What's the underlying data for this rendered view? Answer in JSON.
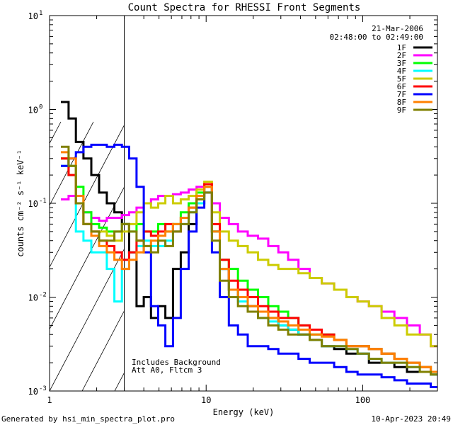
{
  "chart_data": {
    "type": "line",
    "title": "Count Spectra for RHESSI Front Segments",
    "xlabel": "Energy (keV)",
    "ylabel": "counts cm⁻² s⁻¹ keV⁻¹",
    "x_scale": "log",
    "y_scale": "log",
    "xlim": [
      1,
      300
    ],
    "ylim": [
      0.001,
      10
    ],
    "x_ticks": [
      {
        "value": 1,
        "label": "1"
      },
      {
        "value": 10,
        "label": "10"
      },
      {
        "value": 100,
        "label": "100"
      }
    ],
    "y_ticks": [
      {
        "value": 0.001,
        "base": "10",
        "exp": "-3"
      },
      {
        "value": 0.01,
        "base": "10",
        "exp": "-2"
      },
      {
        "value": 0.1,
        "base": "10",
        "exp": "-1"
      },
      {
        "value": 1,
        "base": "10",
        "exp": "0"
      },
      {
        "value": 10,
        "base": "10",
        "exp": "1"
      }
    ],
    "hatched_region_kev": [
      1,
      3
    ],
    "date_label": "21-Mar-2006",
    "time_label": "02:48:00 to 02:49:00",
    "annotations": [
      "Includes Background",
      "Att A0, Fltcm 3"
    ],
    "footer_left": "Generated by hsi_min_spectra_plot.pro",
    "footer_right": "10-Apr-2023 20:49",
    "series": [
      {
        "name": "1F",
        "color": "#000000",
        "x": [
          1.25,
          1.4,
          1.55,
          1.75,
          1.95,
          2.2,
          2.45,
          2.75,
          3.05,
          3.4,
          3.8,
          4.2,
          4.7,
          5.2,
          5.8,
          6.5,
          7.3,
          8.2,
          9.2,
          10.3,
          11.5,
          13,
          15,
          17,
          20,
          23,
          27,
          31,
          36,
          42,
          50,
          60,
          72,
          86,
          100,
          120,
          145,
          175,
          210,
          255,
          290
        ],
        "values": [
          1.2,
          0.8,
          0.45,
          0.3,
          0.2,
          0.13,
          0.1,
          0.08,
          0.06,
          0.03,
          0.008,
          0.01,
          0.006,
          0.008,
          0.006,
          0.02,
          0.03,
          0.06,
          0.1,
          0.16,
          0.05,
          0.02,
          0.012,
          0.01,
          0.008,
          0.007,
          0.006,
          0.005,
          0.0045,
          0.004,
          0.0035,
          0.003,
          0.0028,
          0.0025,
          0.0025,
          0.002,
          0.002,
          0.0018,
          0.0016,
          0.0016,
          0.0015
        ]
      },
      {
        "name": "2F",
        "color": "#ff00ff",
        "x": [
          1.25,
          1.4,
          1.55,
          1.75,
          1.95,
          2.2,
          2.45,
          2.75,
          3.05,
          3.4,
          3.8,
          4.2,
          4.7,
          5.2,
          5.8,
          6.5,
          7.3,
          8.2,
          9.2,
          10.3,
          11.5,
          13,
          15,
          17,
          20,
          23,
          27,
          31,
          36,
          42,
          50,
          60,
          72,
          86,
          100,
          120,
          145,
          175,
          210,
          255,
          290
        ],
        "values": [
          0.11,
          0.12,
          0.1,
          0.08,
          0.07,
          0.065,
          0.07,
          0.07,
          0.075,
          0.08,
          0.09,
          0.1,
          0.11,
          0.12,
          0.12,
          0.125,
          0.13,
          0.14,
          0.15,
          0.16,
          0.1,
          0.07,
          0.06,
          0.05,
          0.045,
          0.042,
          0.035,
          0.03,
          0.025,
          0.02,
          0.016,
          0.014,
          0.012,
          0.01,
          0.009,
          0.008,
          0.007,
          0.006,
          0.005,
          0.004,
          0.003
        ]
      },
      {
        "name": "3F",
        "color": "#00ff00",
        "x": [
          1.25,
          1.4,
          1.55,
          1.75,
          1.95,
          2.2,
          2.45,
          2.75,
          3.05,
          3.4,
          3.8,
          4.2,
          4.7,
          5.2,
          5.8,
          6.5,
          7.3,
          8.2,
          9.2,
          10.3,
          11.5,
          13,
          15,
          17,
          20,
          23,
          27,
          31,
          36,
          42,
          50,
          60,
          72,
          86,
          100,
          120,
          145,
          175,
          210,
          255,
          290
        ],
        "values": [
          0.3,
          0.25,
          0.15,
          0.08,
          0.06,
          0.055,
          0.05,
          0.05,
          0.06,
          0.05,
          0.06,
          0.05,
          0.05,
          0.06,
          0.05,
          0.06,
          0.08,
          0.1,
          0.13,
          0.15,
          0.05,
          0.025,
          0.02,
          0.015,
          0.012,
          0.01,
          0.008,
          0.007,
          0.006,
          0.005,
          0.004,
          0.004,
          0.0035,
          0.003,
          0.003,
          0.0028,
          0.0025,
          0.0022,
          0.002,
          0.0018,
          0.0016
        ]
      },
      {
        "name": "4F",
        "color": "#00ffff",
        "x": [
          1.25,
          1.4,
          1.55,
          1.75,
          1.95,
          2.2,
          2.45,
          2.75,
          3.05,
          3.4,
          3.8,
          4.2,
          4.7,
          5.2,
          5.8,
          6.5,
          7.3,
          8.2,
          9.2,
          10.3,
          11.5,
          13,
          15,
          17,
          20,
          23,
          27,
          31,
          36,
          42,
          50,
          60,
          72,
          86,
          100,
          120,
          145,
          175,
          210,
          255,
          290
        ],
        "values": [
          0.25,
          0.2,
          0.05,
          0.04,
          0.03,
          0.03,
          0.02,
          0.009,
          0.02,
          0.03,
          0.035,
          0.04,
          0.035,
          0.035,
          0.04,
          0.05,
          0.06,
          0.08,
          0.1,
          0.13,
          0.05,
          0.02,
          0.012,
          0.009,
          0.007,
          0.006,
          0.0055,
          0.005,
          0.0045,
          0.004,
          0.0035,
          0.003,
          0.003,
          0.0028,
          0.0025,
          0.0022,
          0.002,
          0.002,
          0.0018,
          0.0016,
          0.0015
        ]
      },
      {
        "name": "5F",
        "color": "#cccc00",
        "x": [
          1.25,
          1.4,
          1.55,
          1.75,
          1.95,
          2.2,
          2.45,
          2.75,
          3.05,
          3.4,
          3.8,
          4.2,
          4.7,
          5.2,
          5.8,
          6.5,
          7.3,
          8.2,
          9.2,
          10.3,
          11.5,
          13,
          15,
          17,
          20,
          23,
          27,
          31,
          36,
          42,
          50,
          60,
          72,
          86,
          100,
          120,
          145,
          175,
          210,
          255,
          290
        ],
        "values": [
          0.3,
          0.2,
          0.12,
          0.06,
          0.05,
          0.05,
          0.045,
          0.04,
          0.05,
          0.06,
          0.08,
          0.1,
          0.09,
          0.1,
          0.12,
          0.1,
          0.11,
          0.12,
          0.14,
          0.17,
          0.08,
          0.05,
          0.04,
          0.035,
          0.03,
          0.025,
          0.022,
          0.02,
          0.02,
          0.018,
          0.016,
          0.014,
          0.012,
          0.01,
          0.009,
          0.008,
          0.006,
          0.005,
          0.004,
          0.004,
          0.003
        ]
      },
      {
        "name": "6F",
        "color": "#ff0000",
        "x": [
          1.25,
          1.4,
          1.55,
          1.75,
          1.95,
          2.2,
          2.45,
          2.75,
          3.05,
          3.4,
          3.8,
          4.2,
          4.7,
          5.2,
          5.8,
          6.5,
          7.3,
          8.2,
          9.2,
          10.3,
          11.5,
          13,
          15,
          17,
          20,
          23,
          27,
          31,
          36,
          42,
          50,
          60,
          72,
          86,
          100,
          120,
          145,
          175,
          210,
          255,
          290
        ],
        "values": [
          0.3,
          0.2,
          0.1,
          0.06,
          0.05,
          0.04,
          0.035,
          0.03,
          0.025,
          0.03,
          0.04,
          0.05,
          0.045,
          0.05,
          0.06,
          0.05,
          0.07,
          0.09,
          0.12,
          0.16,
          0.06,
          0.025,
          0.015,
          0.012,
          0.01,
          0.008,
          0.007,
          0.006,
          0.006,
          0.005,
          0.0045,
          0.004,
          0.0035,
          0.003,
          0.003,
          0.0028,
          0.0025,
          0.0022,
          0.002,
          0.0018,
          0.0016
        ]
      },
      {
        "name": "7F",
        "color": "#0000ff",
        "x": [
          1.25,
          1.4,
          1.55,
          1.75,
          1.95,
          2.2,
          2.45,
          2.75,
          3.05,
          3.4,
          3.8,
          4.2,
          4.7,
          5.2,
          5.8,
          6.5,
          7.3,
          8.2,
          9.2,
          10.3,
          11.5,
          13,
          15,
          17,
          20,
          23,
          27,
          31,
          36,
          42,
          50,
          60,
          72,
          86,
          100,
          120,
          145,
          175,
          210,
          255,
          290
        ],
        "values": [
          0.25,
          0.3,
          0.35,
          0.4,
          0.42,
          0.42,
          0.4,
          0.42,
          0.4,
          0.3,
          0.15,
          0.03,
          0.008,
          0.005,
          0.003,
          0.006,
          0.02,
          0.05,
          0.09,
          0.13,
          0.03,
          0.01,
          0.005,
          0.004,
          0.003,
          0.003,
          0.0028,
          0.0025,
          0.0025,
          0.0022,
          0.002,
          0.002,
          0.0018,
          0.0016,
          0.0015,
          0.0015,
          0.0014,
          0.0013,
          0.0012,
          0.0012,
          0.0011
        ]
      },
      {
        "name": "8F",
        "color": "#ff8000",
        "x": [
          1.25,
          1.4,
          1.55,
          1.75,
          1.95,
          2.2,
          2.45,
          2.75,
          3.05,
          3.4,
          3.8,
          4.2,
          4.7,
          5.2,
          5.8,
          6.5,
          7.3,
          8.2,
          9.2,
          10.3,
          11.5,
          13,
          15,
          17,
          20,
          23,
          27,
          31,
          36,
          42,
          50,
          60,
          72,
          86,
          100,
          120,
          145,
          175,
          210,
          255,
          290
        ],
        "values": [
          0.35,
          0.3,
          0.12,
          0.06,
          0.045,
          0.035,
          0.03,
          0.025,
          0.02,
          0.025,
          0.03,
          0.035,
          0.04,
          0.045,
          0.05,
          0.06,
          0.07,
          0.09,
          0.12,
          0.15,
          0.05,
          0.02,
          0.012,
          0.01,
          0.008,
          0.007,
          0.006,
          0.0055,
          0.005,
          0.0045,
          0.004,
          0.0038,
          0.0035,
          0.003,
          0.003,
          0.0028,
          0.0025,
          0.0022,
          0.002,
          0.0018,
          0.0016
        ]
      },
      {
        "name": "9F",
        "color": "#808000",
        "x": [
          1.25,
          1.4,
          1.55,
          1.75,
          1.95,
          2.2,
          2.45,
          2.75,
          3.05,
          3.4,
          3.8,
          4.2,
          4.7,
          5.2,
          5.8,
          6.5,
          7.3,
          8.2,
          9.2,
          10.3,
          11.5,
          13,
          15,
          17,
          20,
          23,
          27,
          31,
          36,
          42,
          50,
          60,
          72,
          86,
          100,
          120,
          145,
          175,
          210,
          255,
          290
        ],
        "values": [
          0.4,
          0.25,
          0.1,
          0.06,
          0.05,
          0.04,
          0.04,
          0.05,
          0.06,
          0.05,
          0.04,
          0.035,
          0.03,
          0.04,
          0.035,
          0.05,
          0.06,
          0.08,
          0.11,
          0.13,
          0.04,
          0.015,
          0.01,
          0.008,
          0.007,
          0.006,
          0.005,
          0.0045,
          0.004,
          0.004,
          0.0035,
          0.003,
          0.003,
          0.0028,
          0.0025,
          0.0022,
          0.002,
          0.002,
          0.0018,
          0.0016,
          0.0015
        ]
      }
    ]
  }
}
